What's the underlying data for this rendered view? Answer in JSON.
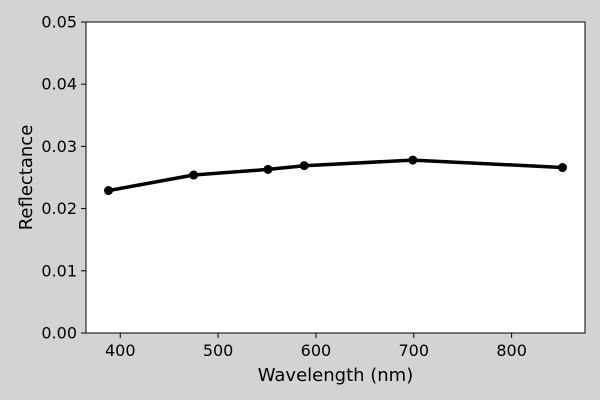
{
  "chart_data": {
    "type": "line",
    "xlabel": "Wavelength (nm)",
    "ylabel": "Reflectance",
    "xlim": [
      365,
      875
    ],
    "ylim": [
      0,
      0.05
    ],
    "x_ticks": [
      400,
      500,
      600,
      700,
      800
    ],
    "y_ticks": [
      0.0,
      0.01,
      0.02,
      0.03,
      0.04,
      0.05
    ],
    "x_tick_labels": [
      "400",
      "500",
      "600",
      "700",
      "800"
    ],
    "y_tick_labels": [
      "0.00",
      "0.01",
      "0.02",
      "0.03",
      "0.04",
      "0.05"
    ],
    "grid": false,
    "colors": {
      "background": "#d3d3d3",
      "plot_area": "#ffffff",
      "series": "#000000"
    },
    "series": [
      {
        "x": [
          388,
          475,
          551,
          588,
          699,
          852
        ],
        "y": [
          0.0229,
          0.0254,
          0.0263,
          0.0269,
          0.0278,
          0.0266
        ]
      }
    ]
  }
}
